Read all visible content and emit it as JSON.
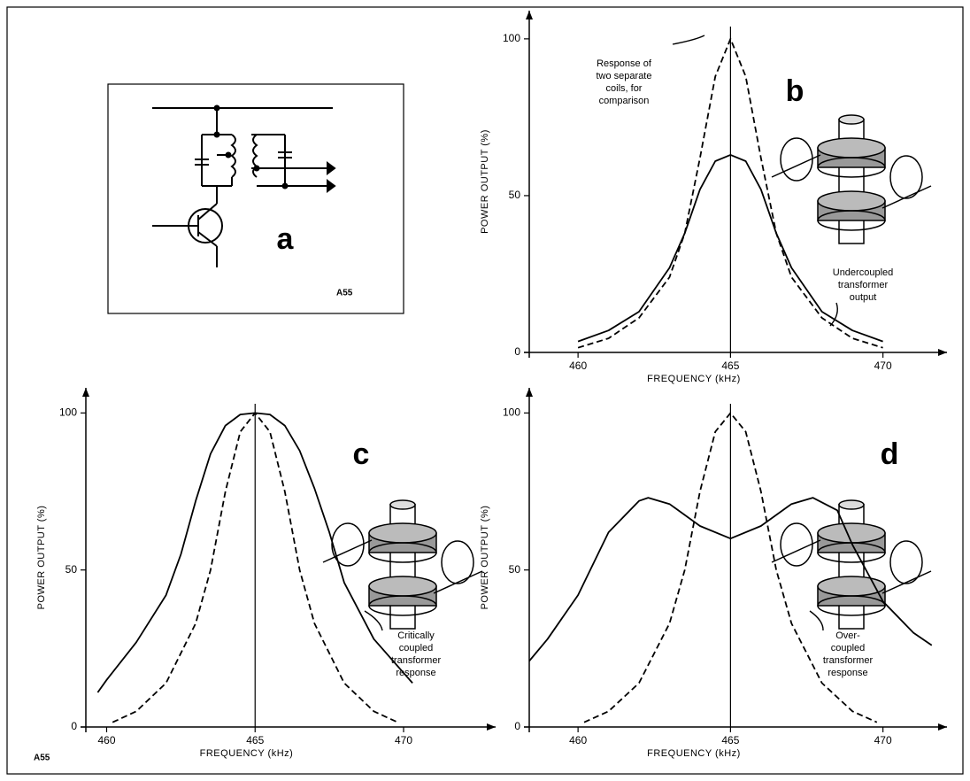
{
  "figure": {
    "panel_a": {
      "label": "a",
      "code": "A55"
    },
    "code": "A55"
  },
  "chart_data": [
    {
      "type": "line",
      "panel": "b",
      "xlabel": "FREQUENCY (kHz)",
      "ylabel": "POWER OUTPUT (%)",
      "xlim": [
        458.4,
        472.1
      ],
      "ylim": [
        0,
        109
      ],
      "xticks": [
        460,
        465,
        470
      ],
      "yticks": [
        0,
        50,
        100
      ],
      "series": [
        {
          "color": "#000000",
          "style": "solid",
          "x": [
            460,
            461,
            462,
            463,
            463.5,
            464,
            464.5,
            465,
            465.5,
            466,
            466.5,
            467,
            468,
            469,
            470
          ],
          "values": [
            3.5,
            7,
            13,
            27,
            38,
            52,
            61,
            63,
            61,
            52,
            38,
            27,
            13,
            7,
            3.5
          ]
        },
        {
          "color": "#000000",
          "style": "dashed",
          "x": [
            460,
            461,
            462,
            463,
            463.5,
            464,
            464.5,
            465,
            465.5,
            466,
            466.5,
            467,
            468,
            469,
            470
          ],
          "values": [
            1.5,
            4.5,
            11,
            24,
            38,
            62,
            88,
            100,
            88,
            62,
            38,
            24,
            11,
            4.5,
            1.5
          ]
        }
      ],
      "annotations": [
        {
          "lines": [
            "Response of",
            "two separate",
            "coils, for",
            "comparison"
          ]
        },
        {
          "lines": [
            "Undercoupled",
            "transformer",
            "output"
          ]
        }
      ]
    },
    {
      "type": "line",
      "panel": "c",
      "xlabel": "FREQUENCY (kHz)",
      "ylabel": "POWER OUTPUT (%)",
      "xlim": [
        459.3,
        473.1
      ],
      "ylim": [
        0,
        108
      ],
      "xticks": [
        460,
        465,
        470
      ],
      "yticks": [
        0,
        50,
        100
      ],
      "series": [
        {
          "color": "#000000",
          "style": "solid",
          "x": [
            459.7,
            460,
            461,
            462,
            462.5,
            463,
            463.5,
            464,
            464.5,
            465,
            465.5,
            466,
            466.5,
            467,
            467.5,
            468,
            469,
            470.3
          ],
          "values": [
            11,
            15,
            27,
            42,
            55,
            72,
            87,
            96,
            99.5,
            100,
            99.5,
            96,
            88,
            76,
            62,
            46,
            28,
            14
          ]
        },
        {
          "color": "#000000",
          "style": "dashed",
          "x": [
            460.2,
            461,
            462,
            463,
            463.5,
            464,
            464.5,
            465,
            465.5,
            466,
            466.5,
            467,
            468,
            469,
            469.8
          ],
          "values": [
            1.5,
            5,
            14,
            33,
            50,
            75,
            94,
            100,
            94,
            75,
            50,
            33,
            14,
            5,
            1.5
          ]
        }
      ],
      "annotations": [
        {
          "lines": [
            "Critically",
            "coupled",
            "transformer",
            "response"
          ]
        }
      ]
    },
    {
      "type": "line",
      "panel": "d",
      "xlabel": "FREQUENCY (kHz)",
      "ylabel": "POWER OUTPUT (%)",
      "xlim": [
        458.4,
        472.1
      ],
      "ylim": [
        0,
        108
      ],
      "xticks": [
        460,
        465,
        470
      ],
      "yticks": [
        0,
        50,
        100
      ],
      "series": [
        {
          "color": "#000000",
          "style": "solid",
          "x": [
            458.4,
            459,
            460,
            461,
            462,
            462.3,
            463,
            464,
            465,
            466,
            467,
            467.7,
            468.5,
            469,
            470,
            471,
            471.6
          ],
          "values": [
            21,
            28,
            42,
            62,
            72,
            73,
            71,
            64,
            60,
            64,
            71,
            73,
            69,
            58,
            40,
            30,
            26
          ]
        },
        {
          "color": "#000000",
          "style": "dashed",
          "x": [
            460.2,
            461,
            462,
            463,
            463.5,
            464,
            464.5,
            465,
            465.5,
            466,
            466.5,
            467,
            468,
            469,
            469.8
          ],
          "values": [
            1.5,
            5,
            14,
            33,
            50,
            75,
            94,
            100,
            94,
            75,
            50,
            33,
            14,
            5,
            1.5
          ]
        }
      ],
      "annotations": [
        {
          "lines": [
            "Over-",
            "coupled",
            "transformer",
            "response"
          ]
        }
      ]
    }
  ]
}
